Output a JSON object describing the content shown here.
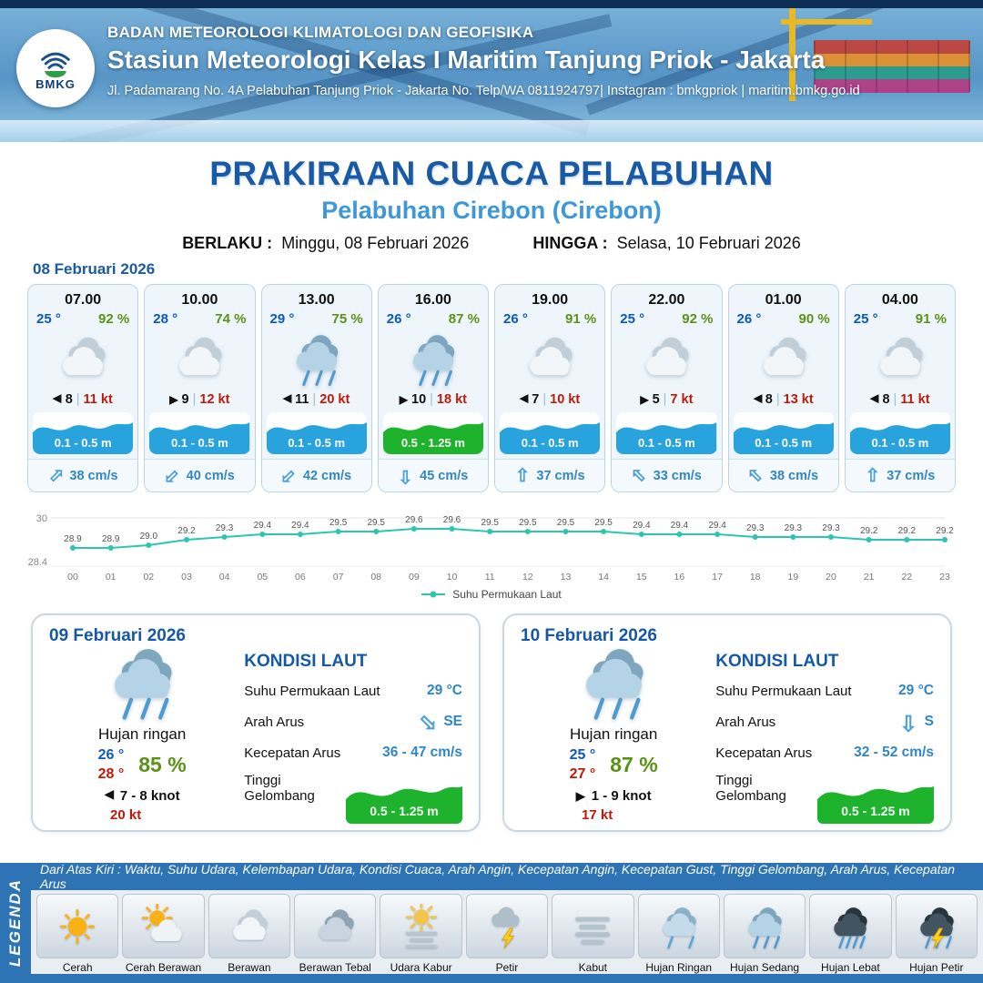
{
  "header": {
    "org": "BADAN METEOROLOGI KLIMATOLOGI DAN GEOFISIKA",
    "station": "Stasiun Meteorologi Kelas I Maritim Tanjung Priok - Jakarta",
    "address": "Jl. Padamarang No. 4A Pelabuhan Tanjung Priok - Jakarta No. Telp/WA 0811924797| Instagram : bmkgpriok | maritim.bmkg.go.id",
    "logo_text": "BMKG"
  },
  "title": {
    "main": "PRAKIRAAN CUACA PELABUHAN",
    "port": "Pelabuhan Cirebon (Cirebon)",
    "valid_from_label": "BERLAKU :",
    "valid_from": "Minggu, 08 Februari 2026",
    "valid_to_label": "HINGGA :",
    "valid_to": "Selasa, 10 Februari 2026"
  },
  "forecast_date": "08 Februari 2026",
  "forecast_cards": [
    {
      "time": "07.00",
      "temp": "25 °",
      "humidity": "92 %",
      "icon": "berawan",
      "wind_dir_deg": 180,
      "wind": "8",
      "gust": "11 kt",
      "wave": "0.1 - 0.5 m",
      "wave_color": "blue",
      "current_dir_deg": 45,
      "current": "38 cm/s"
    },
    {
      "time": "10.00",
      "temp": "28 °",
      "humidity": "74 %",
      "icon": "berawan",
      "wind_dir_deg": 0,
      "wind": "9",
      "gust": "12 kt",
      "wave": "0.1 - 0.5 m",
      "wave_color": "blue",
      "current_dir_deg": 225,
      "current": "40 cm/s"
    },
    {
      "time": "13.00",
      "temp": "29 °",
      "humidity": "75 %",
      "icon": "hujan-sedang",
      "wind_dir_deg": 180,
      "wind": "11",
      "gust": "20 kt",
      "wave": "0.1 - 0.5 m",
      "wave_color": "blue",
      "current_dir_deg": 225,
      "current": "42 cm/s"
    },
    {
      "time": "16.00",
      "temp": "26 °",
      "humidity": "87 %",
      "icon": "hujan-sedang",
      "wind_dir_deg": 0,
      "wind": "10",
      "gust": "18 kt",
      "wave": "0.5 - 1.25 m",
      "wave_color": "green",
      "current_dir_deg": 180,
      "current": "45 cm/s"
    },
    {
      "time": "19.00",
      "temp": "26 °",
      "humidity": "91 %",
      "icon": "berawan",
      "wind_dir_deg": 180,
      "wind": "7",
      "gust": "10 kt",
      "wave": "0.1 - 0.5 m",
      "wave_color": "blue",
      "current_dir_deg": 0,
      "current": "37 cm/s"
    },
    {
      "time": "22.00",
      "temp": "25 °",
      "humidity": "92 %",
      "icon": "berawan",
      "wind_dir_deg": 0,
      "wind": "5",
      "gust": "7 kt",
      "wave": "0.1 - 0.5 m",
      "wave_color": "blue",
      "current_dir_deg": 315,
      "current": "33 cm/s"
    },
    {
      "time": "01.00",
      "temp": "26 °",
      "humidity": "90 %",
      "icon": "berawan",
      "wind_dir_deg": 180,
      "wind": "8",
      "gust": "13 kt",
      "wave": "0.1 - 0.5 m",
      "wave_color": "blue",
      "current_dir_deg": 315,
      "current": "38 cm/s"
    },
    {
      "time": "04.00",
      "temp": "25 °",
      "humidity": "91 %",
      "icon": "berawan",
      "wind_dir_deg": 180,
      "wind": "8",
      "gust": "11 kt",
      "wave": "0.1 - 0.5 m",
      "wave_color": "blue",
      "current_dir_deg": 0,
      "current": "37 cm/s"
    }
  ],
  "chart_data": {
    "type": "line",
    "series_label": "Suhu Permukaan Laut",
    "x": [
      "00",
      "01",
      "02",
      "03",
      "04",
      "05",
      "06",
      "07",
      "08",
      "09",
      "10",
      "11",
      "12",
      "13",
      "14",
      "15",
      "16",
      "17",
      "18",
      "19",
      "20",
      "21",
      "22",
      "23"
    ],
    "values": [
      28.9,
      28.9,
      29.0,
      29.2,
      29.3,
      29.4,
      29.4,
      29.5,
      29.5,
      29.6,
      29.6,
      29.5,
      29.5,
      29.5,
      29.5,
      29.4,
      29.4,
      29.4,
      29.3,
      29.3,
      29.3,
      29.2,
      29.2,
      29.2
    ],
    "ylim": [
      28.4,
      30
    ],
    "yticks": [
      "30",
      "28.4"
    ],
    "line_color": "#2cc5b2",
    "grid": "minimal",
    "legend_position": "bottom"
  },
  "daily": [
    {
      "date": "09 Februari 2026",
      "icon": "hujan-sedang",
      "condition": "Hujan ringan",
      "temp_min": "26 °",
      "temp_max": "28 °",
      "humidity": "85 %",
      "wind_dir_deg": 180,
      "wind": "7  - 8 knot",
      "gust": "20 kt",
      "sea": {
        "title": "KONDISI LAUT",
        "sst_label": "Suhu Permukaan Laut",
        "sst": "29 °C",
        "current_dir_label": "Arah Arus",
        "current_dir": "SE",
        "current_dir_deg": 135,
        "current_speed_label": "Kecepatan Arus",
        "current_speed": "36  - 47 cm/s",
        "wave_label": "Tinggi Gelombang",
        "wave": "0.5 - 1.25 m"
      }
    },
    {
      "date": "10 Februari 2026",
      "icon": "hujan-sedang",
      "condition": "Hujan ringan",
      "temp_min": "25 °",
      "temp_max": "27 °",
      "humidity": "87 %",
      "wind_dir_deg": 0,
      "wind": "1  - 9 knot",
      "gust": "17 kt",
      "sea": {
        "title": "KONDISI LAUT",
        "sst_label": "Suhu Permukaan Laut",
        "sst": "29 °C",
        "current_dir_label": "Arah Arus",
        "current_dir": "S",
        "current_dir_deg": 180,
        "current_speed_label": "Kecepatan Arus",
        "current_speed": "32 - 52 cm/s",
        "wave_label": "Tinggi Gelombang",
        "wave": "0.5 - 1.25 m"
      }
    }
  ],
  "legend": {
    "title": "LEGENDA",
    "note": "Dari Atas Kiri : Waktu, Suhu Udara, Kelembapan Udara, Kondisi Cuaca, Arah Angin, Kecepatan Angin, Kecepatan Gust, Tinggi Gelombang, Arah Arus, Kecepatan Arus",
    "items": [
      {
        "icon": "cerah",
        "label": "Cerah"
      },
      {
        "icon": "cerah-berawan",
        "label": "Cerah Berawan"
      },
      {
        "icon": "berawan",
        "label": "Berawan"
      },
      {
        "icon": "berawan-tebal",
        "label": "Berawan Tebal"
      },
      {
        "icon": "udara-kabur",
        "label": "Udara Kabur"
      },
      {
        "icon": "petir",
        "label": "Petir"
      },
      {
        "icon": "kabut",
        "label": "Kabut"
      },
      {
        "icon": "hujan-ringan",
        "label": "Hujan Ringan"
      },
      {
        "icon": "hujan-sedang",
        "label": "Hujan Sedang"
      },
      {
        "icon": "hujan-lebat",
        "label": "Hujan Lebat"
      },
      {
        "icon": "hujan-petir",
        "label": "Hujan Petir"
      }
    ]
  }
}
